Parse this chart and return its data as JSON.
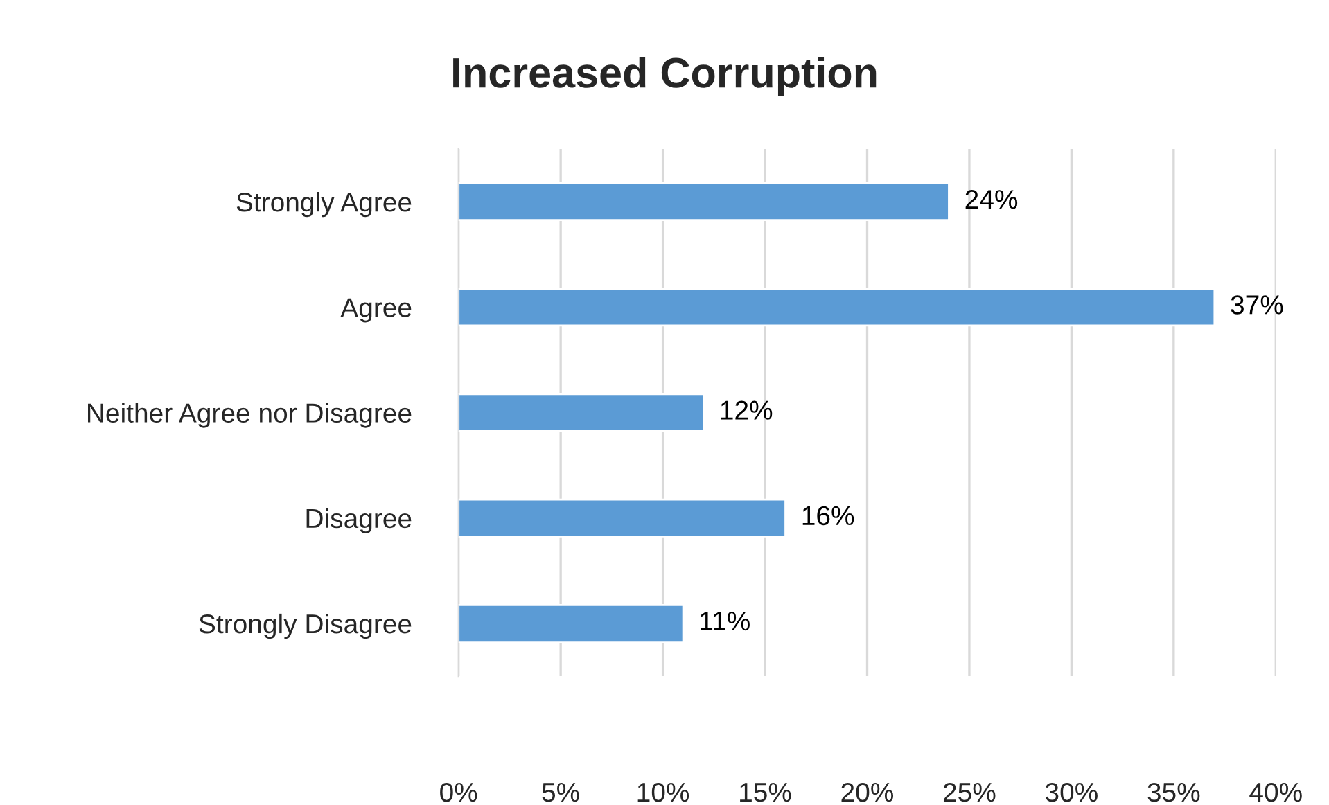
{
  "chart_data": {
    "type": "bar",
    "orientation": "horizontal",
    "title": "Increased Corruption",
    "categories": [
      "Strongly Agree",
      "Agree",
      "Neither Agree nor Disagree",
      "Disagree",
      "Strongly Disagree"
    ],
    "values": [
      24,
      37,
      12,
      16,
      11
    ],
    "value_labels": [
      "24%",
      "37%",
      "12%",
      "16%",
      "11%"
    ],
    "color": "#5b9bd5",
    "xlim": [
      0,
      40
    ],
    "xticks": [
      {
        "value": 0,
        "label": "0%"
      },
      {
        "value": 5,
        "label": "5%"
      },
      {
        "value": 10,
        "label": "10%"
      },
      {
        "value": 15,
        "label": "15%"
      },
      {
        "value": 20,
        "label": "20%"
      },
      {
        "value": 25,
        "label": "25%"
      },
      {
        "value": 30,
        "label": "30%"
      },
      {
        "value": 35,
        "label": "35%"
      },
      {
        "value": 40,
        "label": "40%"
      }
    ],
    "grid": "x"
  }
}
